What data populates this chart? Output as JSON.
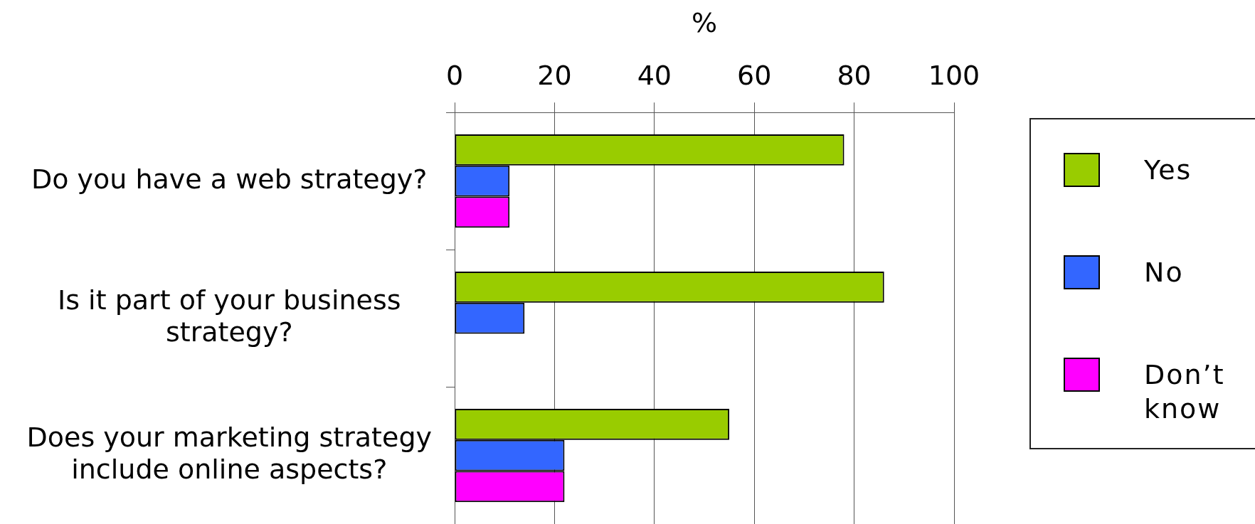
{
  "chart_data": {
    "type": "bar",
    "orientation": "horizontal",
    "categories": [
      "Do you have a web strategy?",
      "Is it part of your business strategy?",
      "Does your marketing strategy include online aspects?"
    ],
    "series": [
      {
        "name": "Yes",
        "color": "#99cc00",
        "values": [
          78,
          86,
          55
        ]
      },
      {
        "name": "No",
        "color": "#3366ff",
        "values": [
          11,
          14,
          22
        ]
      },
      {
        "name": "Don’t know",
        "color": "#ff00ff",
        "values": [
          11,
          null,
          22
        ]
      }
    ],
    "xlabel": "%",
    "xlim": [
      0,
      100
    ],
    "xticks": [
      0,
      20,
      40,
      60,
      80,
      100
    ],
    "grid": "x",
    "legend": "right"
  }
}
